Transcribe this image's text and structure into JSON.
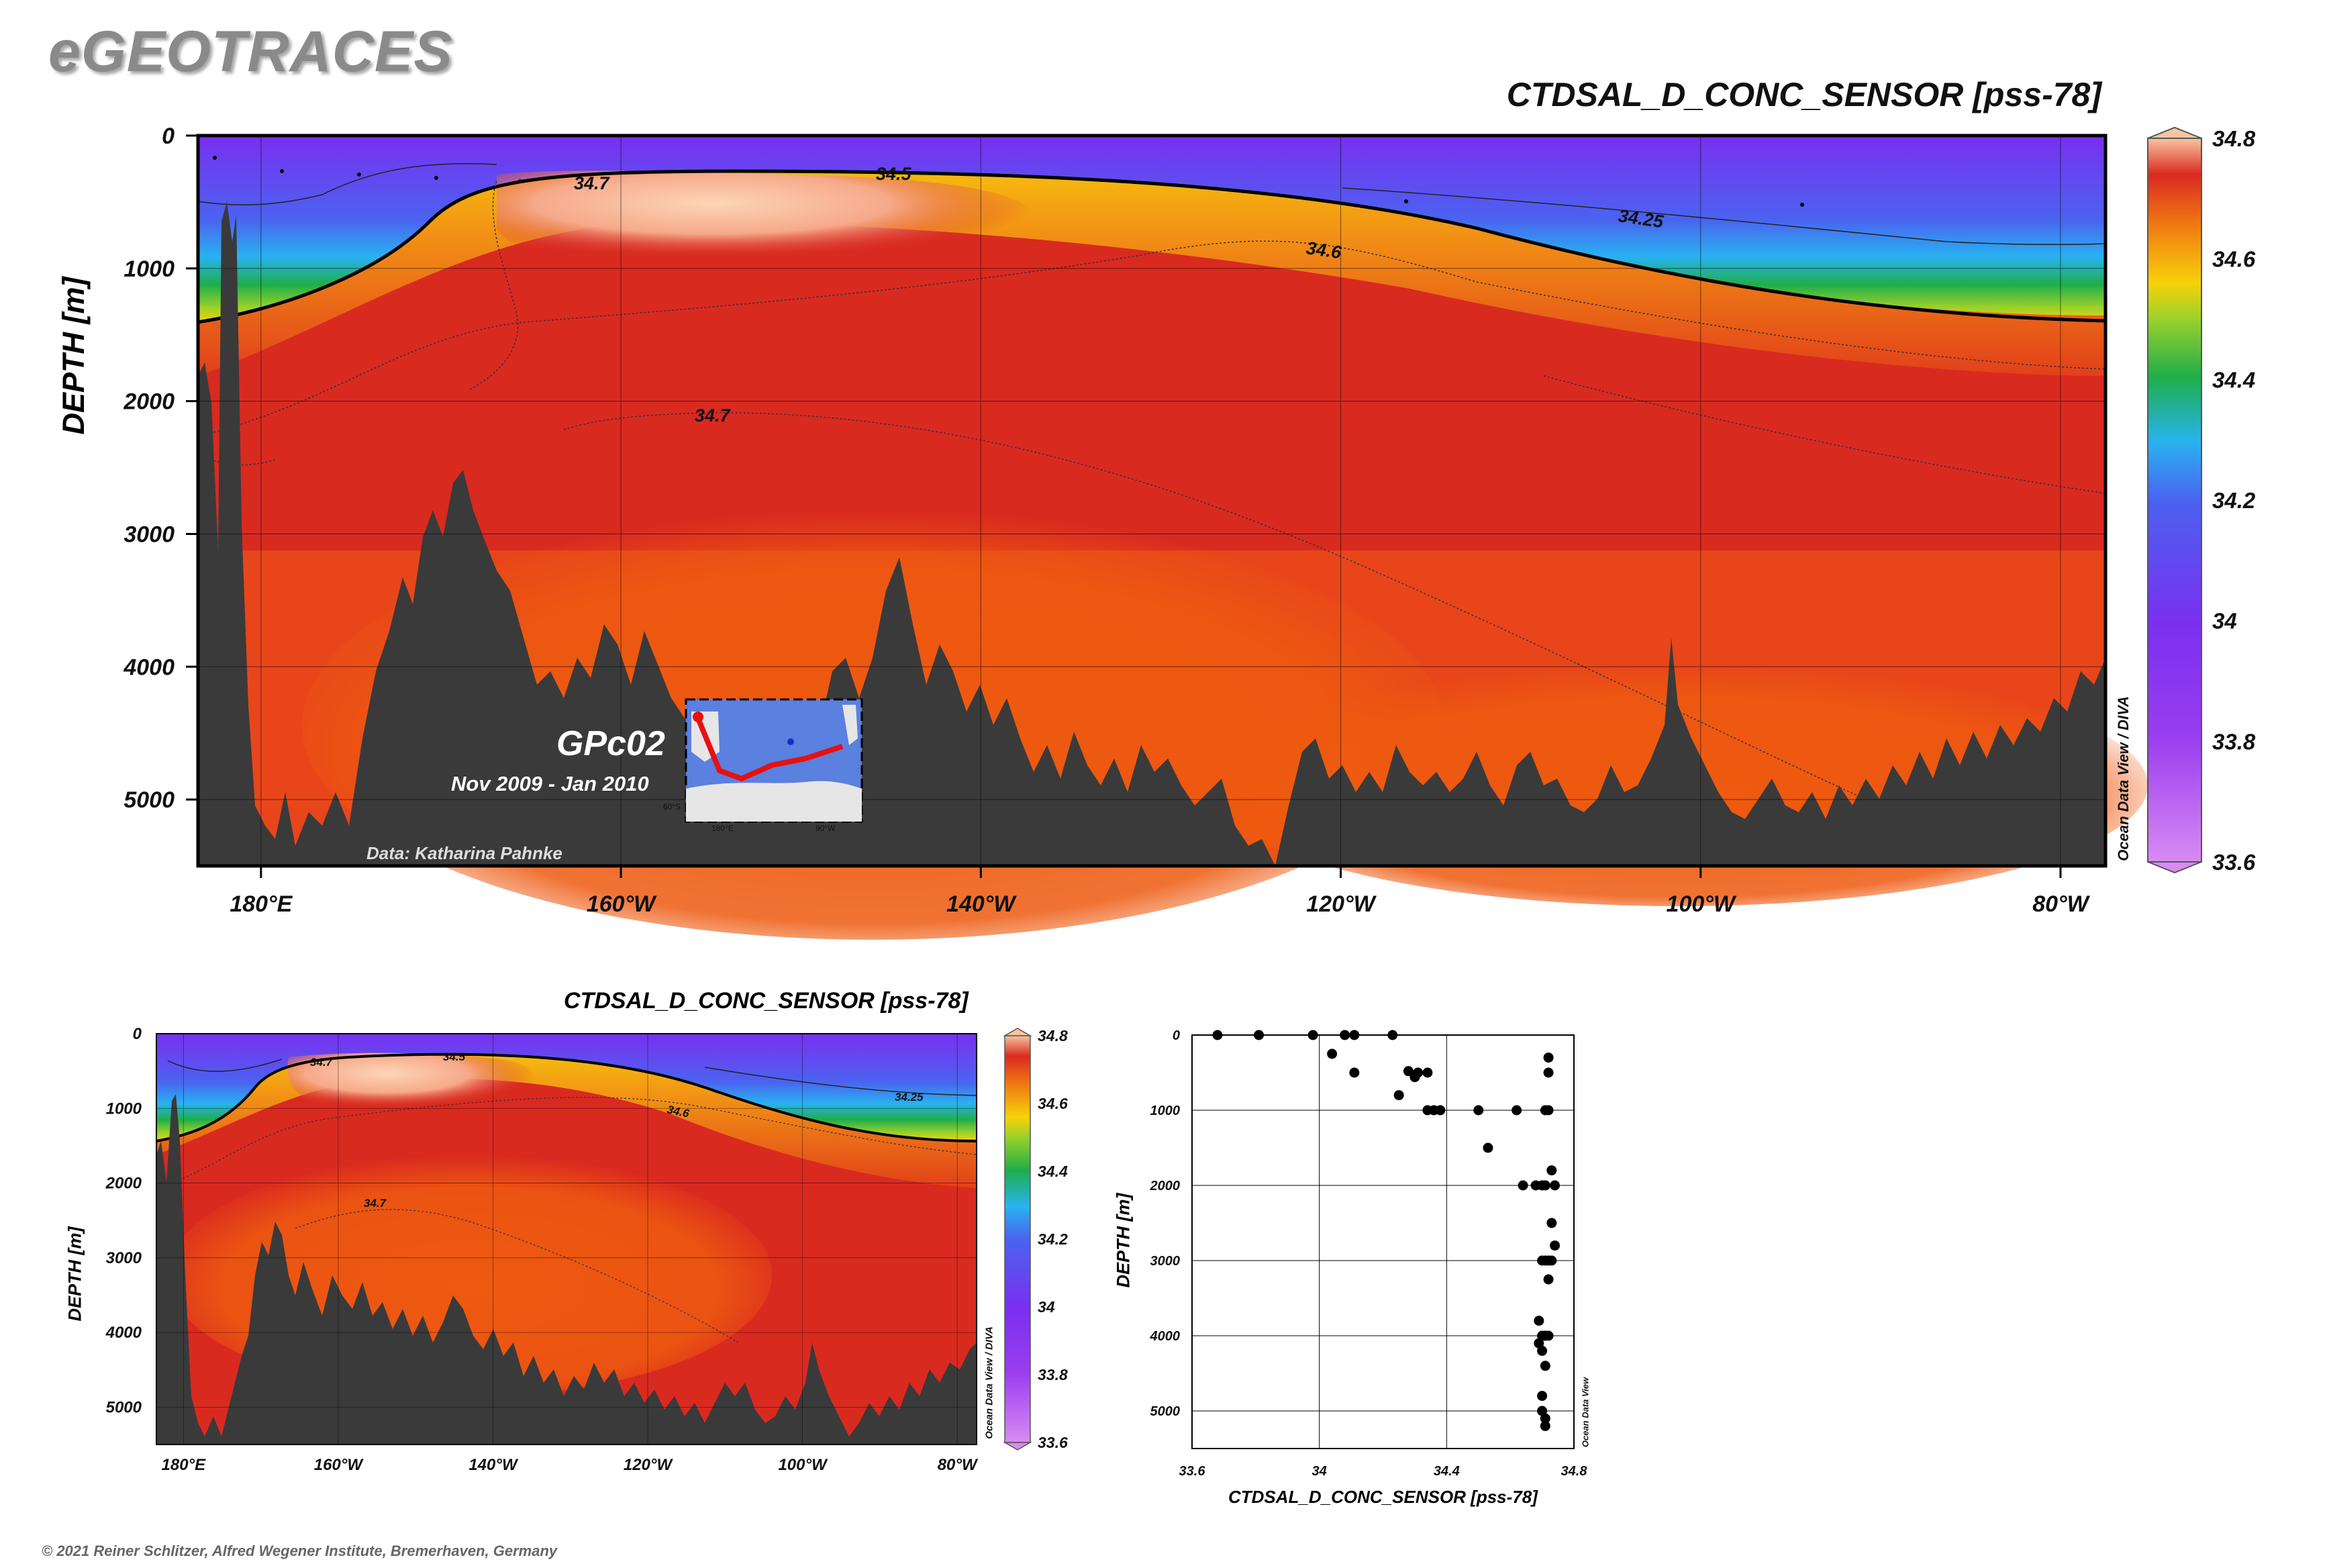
{
  "brand": "eGEOTRACES",
  "copyright": "© 2021 Reiner Schlitzer, Alfred Wegener Institute, Bremerhaven, Germany",
  "main_section": {
    "title": "CTDSAL_D_CONC_SENSOR [pss-78]",
    "ylabel": "DEPTH [m]",
    "credit_vertical": "Ocean Data View / DIVA",
    "cruise_label": "GPc02",
    "cruise_dates": "Nov 2009 - Jan 2010",
    "data_credit": "Data: Katharina Pahnke"
  },
  "small_section": {
    "title": "CTDSAL_D_CONC_SENSOR [pss-78]",
    "ylabel": "DEPTH [m]",
    "credit_vertical": "Ocean Data View / DIVA"
  },
  "scatter_section": {
    "xlabel": "CTDSAL_D_CONC_SENSOR [pss-78]",
    "ylabel": "DEPTH [m]",
    "credit_vertical": "Ocean Data View"
  },
  "colors": {
    "land": "#3a3a3a",
    "deep_orange": "#ef5a12",
    "red": "#d92a20",
    "peach": "#f9c4a0",
    "yellow": "#f6c60d",
    "green": "#1fae4a",
    "blue": "#3b7df2",
    "violet": "#7a2ff0",
    "light_violet": "#d77ff1"
  },
  "chart_data": [
    {
      "type": "heatmap",
      "id": "main-section",
      "title": "CTDSAL_D_CONC_SENSOR [pss-78]",
      "ylabel": "DEPTH [m]",
      "x_ticks": [
        "180°E",
        "160°W",
        "140°W",
        "120°W",
        "100°W",
        "80°W"
      ],
      "x_tick_lon": [
        180,
        200,
        220,
        240,
        260,
        280
      ],
      "x_range_lon": [
        176.5,
        282.5
      ],
      "y_ticks": [
        0,
        1000,
        2000,
        3000,
        4000,
        5000
      ],
      "ylim": [
        0,
        5500
      ],
      "colorbar": {
        "ticks": [
          34.8,
          34.6,
          34.4,
          34.2,
          34,
          33.8,
          33.6
        ],
        "range": [
          33.6,
          34.8
        ]
      },
      "contour_labels": [
        "34.7",
        "34.5",
        "34.25",
        "34.6",
        "34.7"
      ],
      "inset_map": {
        "lon_ticks": [
          "180°E",
          "90°W"
        ],
        "lat_tick": "60°S"
      }
    },
    {
      "type": "heatmap",
      "id": "small-section",
      "title": "CTDSAL_D_CONC_SENSOR [pss-78]",
      "ylabel": "DEPTH [m]",
      "x_ticks": [
        "180°E",
        "160°W",
        "140°W",
        "120°W",
        "100°W",
        "80°W"
      ],
      "y_ticks": [
        0,
        1000,
        2000,
        3000,
        4000,
        5000
      ],
      "ylim": [
        0,
        5500
      ],
      "colorbar": {
        "ticks": [
          34.8,
          34.6,
          34.4,
          34.2,
          34,
          33.8,
          33.6
        ],
        "range": [
          33.6,
          34.8
        ]
      },
      "contour_labels": [
        "34.7",
        "34.5",
        "34.25",
        "34.6",
        "34.7"
      ]
    },
    {
      "type": "scatter",
      "id": "profile-scatter",
      "xlabel": "CTDSAL_D_CONC_SENSOR [pss-78]",
      "ylabel": "DEPTH [m]",
      "x_ticks": [
        33.6,
        34,
        34.4,
        34.8
      ],
      "xlim": [
        33.6,
        34.8
      ],
      "y_ticks": [
        0,
        1000,
        2000,
        3000,
        4000,
        5000
      ],
      "ylim": [
        0,
        5500
      ],
      "grid": true,
      "points": [
        {
          "x": 33.68,
          "y": 0
        },
        {
          "x": 33.81,
          "y": 0
        },
        {
          "x": 33.98,
          "y": 0
        },
        {
          "x": 34.08,
          "y": 0
        },
        {
          "x": 34.11,
          "y": 0
        },
        {
          "x": 34.23,
          "y": 0
        },
        {
          "x": 34.72,
          "y": 300
        },
        {
          "x": 34.04,
          "y": 250
        },
        {
          "x": 34.11,
          "y": 500
        },
        {
          "x": 34.28,
          "y": 480
        },
        {
          "x": 34.3,
          "y": 560
        },
        {
          "x": 34.31,
          "y": 500
        },
        {
          "x": 34.34,
          "y": 500
        },
        {
          "x": 34.72,
          "y": 500
        },
        {
          "x": 34.25,
          "y": 800
        },
        {
          "x": 34.34,
          "y": 1000
        },
        {
          "x": 34.36,
          "y": 1000
        },
        {
          "x": 34.38,
          "y": 1000
        },
        {
          "x": 34.5,
          "y": 1000
        },
        {
          "x": 34.62,
          "y": 1000
        },
        {
          "x": 34.71,
          "y": 1000
        },
        {
          "x": 34.72,
          "y": 1000
        },
        {
          "x": 34.53,
          "y": 1500
        },
        {
          "x": 34.73,
          "y": 1800
        },
        {
          "x": 34.64,
          "y": 2000
        },
        {
          "x": 34.68,
          "y": 2000
        },
        {
          "x": 34.7,
          "y": 2000
        },
        {
          "x": 34.71,
          "y": 2000
        },
        {
          "x": 34.74,
          "y": 2000
        },
        {
          "x": 34.73,
          "y": 2500
        },
        {
          "x": 34.74,
          "y": 2800
        },
        {
          "x": 34.7,
          "y": 3000
        },
        {
          "x": 34.71,
          "y": 3000
        },
        {
          "x": 34.72,
          "y": 3000
        },
        {
          "x": 34.73,
          "y": 3000
        },
        {
          "x": 34.72,
          "y": 3250
        },
        {
          "x": 34.69,
          "y": 3800
        },
        {
          "x": 34.7,
          "y": 4000
        },
        {
          "x": 34.71,
          "y": 4000
        },
        {
          "x": 34.72,
          "y": 4000
        },
        {
          "x": 34.69,
          "y": 4100
        },
        {
          "x": 34.7,
          "y": 4200
        },
        {
          "x": 34.71,
          "y": 4400
        },
        {
          "x": 34.7,
          "y": 4800
        },
        {
          "x": 34.7,
          "y": 5000
        },
        {
          "x": 34.71,
          "y": 5100
        },
        {
          "x": 34.71,
          "y": 5200
        }
      ]
    }
  ]
}
